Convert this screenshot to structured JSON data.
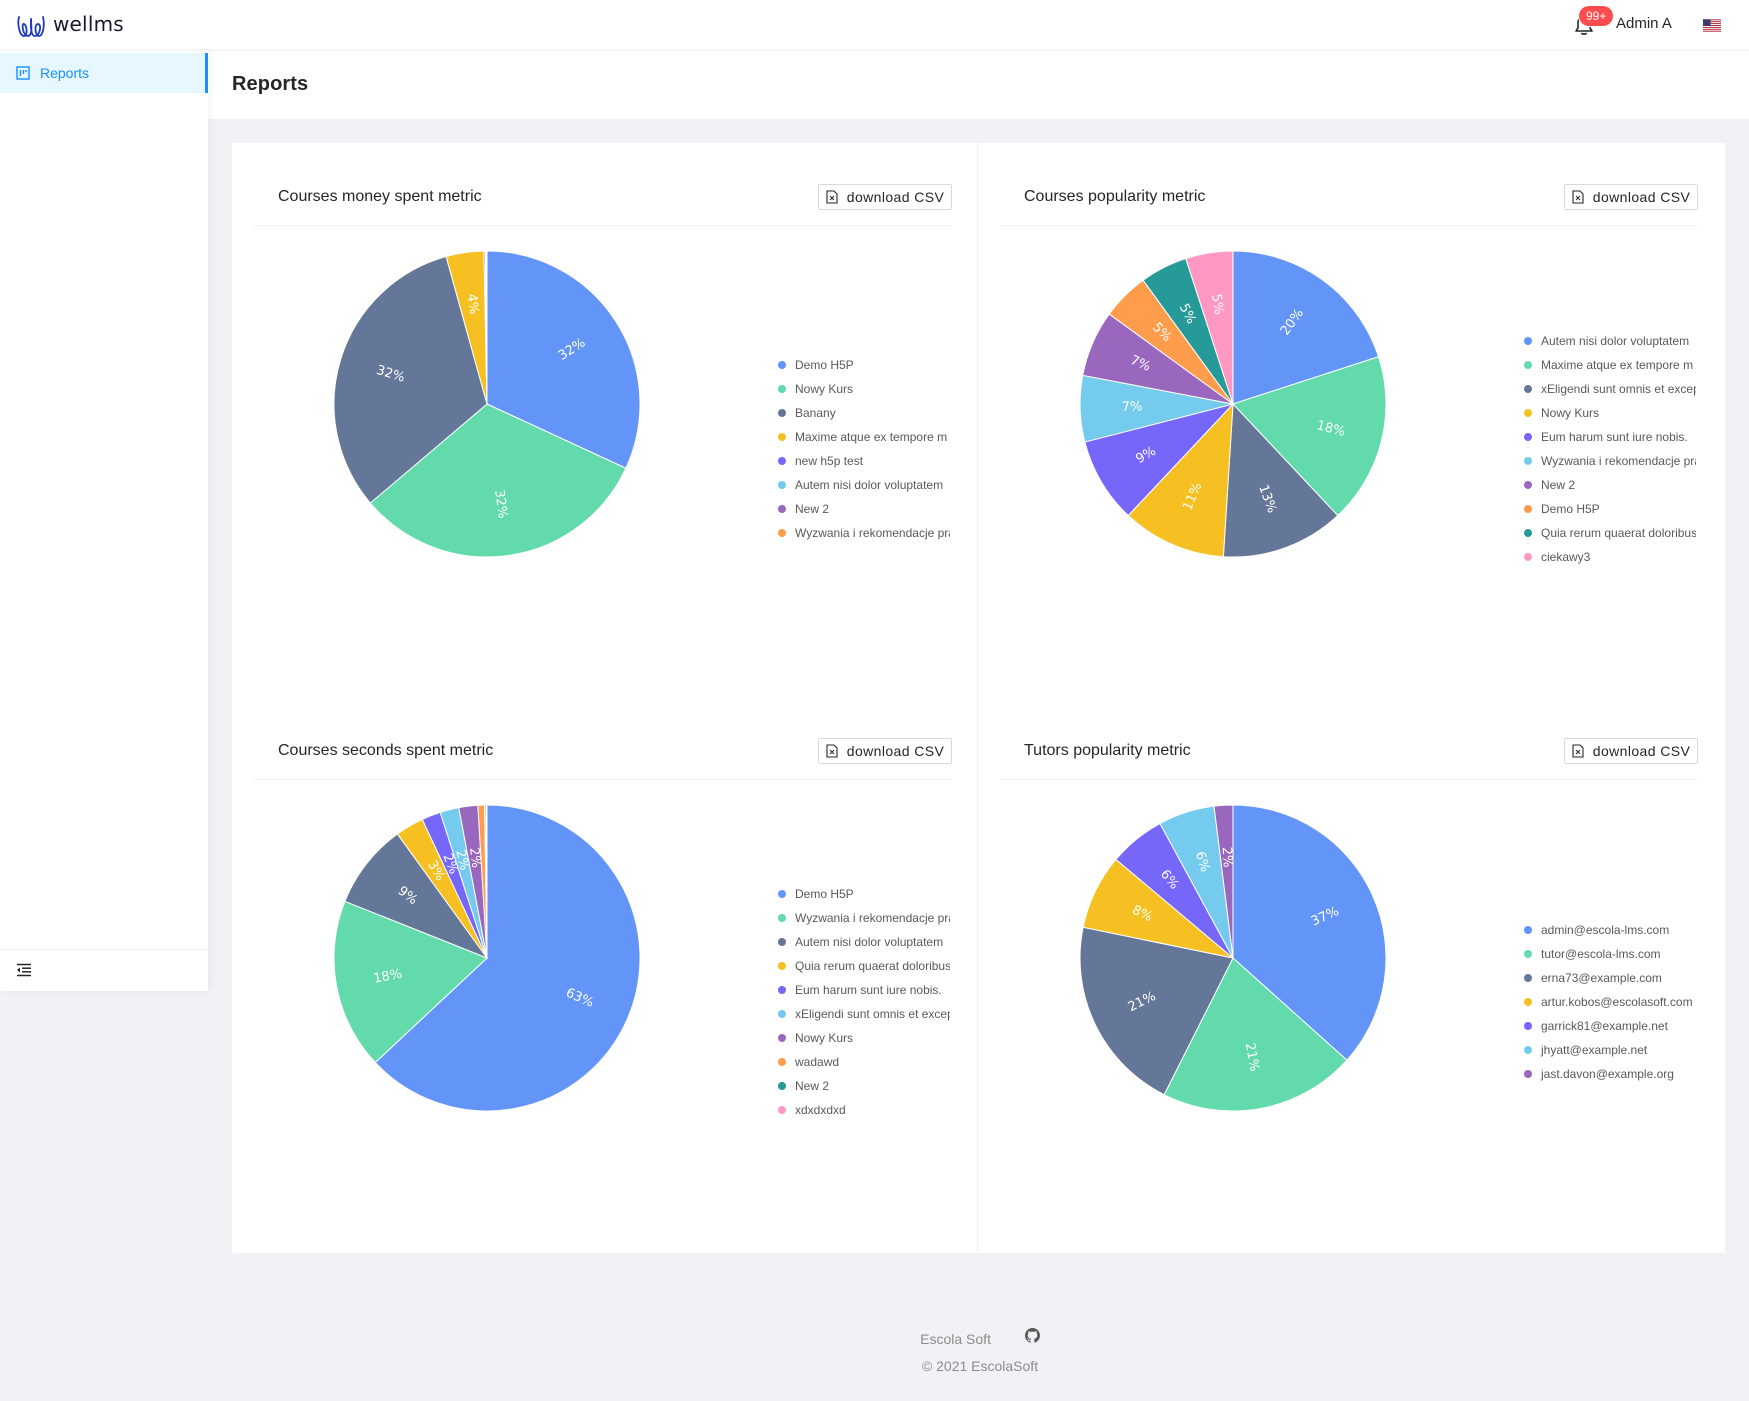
{
  "app": {
    "name": "wellms"
  },
  "header": {
    "notification_count": "99+",
    "user_name": "Admin A",
    "language_icon": "us-flag-icon"
  },
  "sidebar": {
    "items": [
      {
        "label": "Reports",
        "icon": "reports-icon",
        "active": true
      }
    ],
    "collapse_icon": "menu-fold-icon"
  },
  "page": {
    "title": "Reports"
  },
  "panels": [
    {
      "title": "Courses money spent metric",
      "csv_label": "download CSV",
      "legend": [
        "Demo H5P",
        "Nowy Kurs",
        "Banany",
        "Maxime atque ex tempore m",
        "new h5p test",
        "Autem nisi dolor voluptatem",
        "New 2",
        "Wyzwania i rekomendacje pra"
      ]
    },
    {
      "title": "Courses popularity metric",
      "csv_label": "download CSV",
      "legend": [
        "Autem nisi dolor voluptatem",
        "Maxime atque ex tempore m",
        "xEligendi sunt omnis et excep",
        "Nowy Kurs",
        "Eum harum sunt iure nobis.",
        "Wyzwania i rekomendacje pra",
        "New 2",
        "Demo H5P",
        "Quia rerum quaerat doloribus",
        "ciekawy3"
      ]
    },
    {
      "title": "Courses seconds spent metric",
      "csv_label": "download CSV",
      "legend": [
        "Demo H5P",
        "Wyzwania i rekomendacje pra",
        "Autem nisi dolor voluptatem",
        "Quia rerum quaerat doloribus",
        "Eum harum sunt iure nobis.",
        "xEligendi sunt omnis et excep",
        "Nowy Kurs",
        "wadawd",
        "New 2",
        "xdxdxdxd"
      ]
    },
    {
      "title": "Tutors popularity metric",
      "csv_label": "download CSV",
      "legend": [
        "admin@escola-lms.com",
        "tutor@escola-lms.com",
        "erna73@example.com",
        "artur.kobos@escolasoft.com",
        "garrick81@example.net",
        "jhyatt@example.net",
        "jast.davon@example.org"
      ]
    }
  ],
  "colors": [
    "#6395f9",
    "#62daab",
    "#657798",
    "#f6c022",
    "#7666f9",
    "#74cbed",
    "#9967bd",
    "#ff9d4d",
    "#269a99",
    "#ff99c3"
  ],
  "chart_data": [
    {
      "type": "pie",
      "title": "Courses money spent metric",
      "categories": [
        "Demo H5P",
        "Nowy Kurs",
        "Banany",
        "Maxime atque ex tempore m",
        "new h5p test",
        "Autem nisi dolor voluptatem",
        "New 2",
        "Wyzwania i rekomendacje pra"
      ],
      "values": [
        32,
        32,
        32,
        4,
        0.15,
        0.1,
        0.05,
        0.02
      ],
      "labels": [
        "32%",
        "32%",
        "32%",
        "4%",
        "",
        "",
        "",
        ""
      ]
    },
    {
      "type": "pie",
      "title": "Courses popularity metric",
      "categories": [
        "Autem nisi dolor voluptatem",
        "Maxime atque ex tempore m",
        "xEligendi sunt omnis et excep",
        "Nowy Kurs",
        "Eum harum sunt iure nobis.",
        "Wyzwania i rekomendacje pra",
        "New 2",
        "Demo H5P",
        "Quia rerum quaerat doloribus",
        "ciekawy3"
      ],
      "values": [
        20,
        18,
        13,
        11,
        9,
        7,
        7,
        5,
        5,
        5
      ],
      "labels": [
        "20%",
        "18%",
        "13%",
        "11%",
        "9%",
        "7%",
        "7%",
        "5%",
        "5%",
        "5%"
      ]
    },
    {
      "type": "pie",
      "title": "Courses seconds spent metric",
      "categories": [
        "Demo H5P",
        "Wyzwania i rekomendacje pra",
        "Autem nisi dolor voluptatem",
        "Quia rerum quaerat doloribus",
        "Eum harum sunt iure nobis.",
        "xEligendi sunt omnis et excep",
        "Nowy Kurs",
        "wadawd",
        "New 2",
        "xdxdxdxd"
      ],
      "values": [
        63,
        18,
        9,
        3,
        2,
        2,
        2,
        0.7,
        0.15,
        0.1
      ],
      "labels": [
        "63%",
        "18%",
        "9%",
        "3%",
        "2%",
        "2%",
        "2%",
        "",
        "",
        ""
      ]
    },
    {
      "type": "pie",
      "title": "Tutors popularity metric",
      "categories": [
        "admin@escola-lms.com",
        "tutor@escola-lms.com",
        "erna73@example.com",
        "artur.kobos@escolasoft.com",
        "garrick81@example.net",
        "jhyatt@example.net",
        "jast.davon@example.org"
      ],
      "values": [
        37,
        21,
        21,
        8,
        6,
        6,
        2
      ],
      "labels": [
        "37%",
        "21%",
        "21%",
        "8%",
        "6%",
        "6%",
        "2%"
      ]
    }
  ],
  "footer": {
    "company": "Escola Soft",
    "repo_icon": "github-icon",
    "copyright": "2021 EscolaSoft"
  }
}
